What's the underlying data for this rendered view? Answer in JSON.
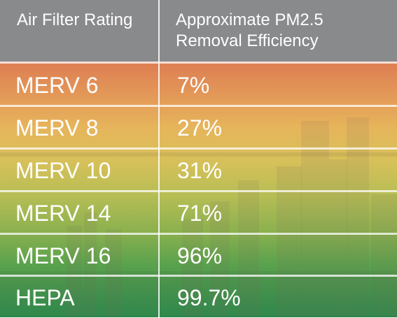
{
  "header": {
    "col1": "Air Filter Rating",
    "col2_line1": "Approximate PM2.5",
    "col2_line2": "Removal Efficiency"
  },
  "rows": [
    {
      "rating": "MERV 6",
      "efficiency": "7%"
    },
    {
      "rating": "MERV 8",
      "efficiency": "27%"
    },
    {
      "rating": "MERV 10",
      "efficiency": "31%"
    },
    {
      "rating": "MERV 14",
      "efficiency": "71%"
    },
    {
      "rating": "MERV 16",
      "efficiency": "96%"
    },
    {
      "rating": "HEPA",
      "efficiency": "99.7%"
    }
  ],
  "colors": {
    "header_bg": "#898a8c",
    "gradient_top": "#dd7d53",
    "gradient_bottom": "#2c8f4d",
    "text": "#ffffff"
  }
}
